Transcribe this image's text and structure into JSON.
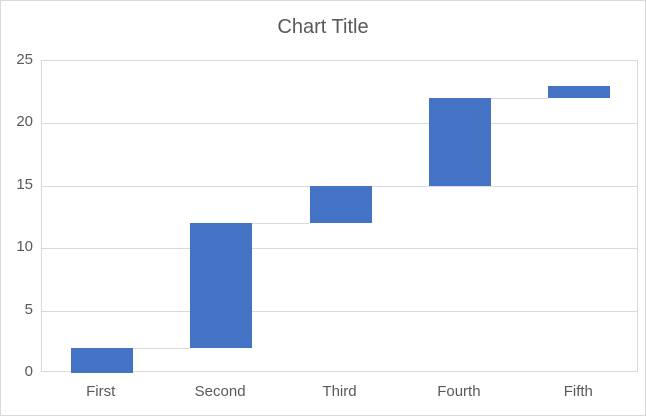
{
  "window": {
    "background_color": "#FFFFFF",
    "border_color": "#D9D9D9"
  },
  "chart_data": {
    "type": "bar",
    "subtype": "floating-waterfall",
    "title": "Chart Title",
    "categories": [
      "First",
      "Second",
      "Third",
      "Fourth",
      "Fifth"
    ],
    "series": [
      {
        "name": "values",
        "ranges": [
          [
            0,
            2
          ],
          [
            2,
            12
          ],
          [
            12,
            15
          ],
          [
            15,
            22
          ],
          [
            22,
            23
          ]
        ]
      }
    ],
    "xlabel": "",
    "ylabel": "",
    "ylim": [
      0,
      25
    ],
    "yticks": [
      0,
      5,
      10,
      15,
      20,
      25
    ],
    "grid": true,
    "legend": false,
    "connectors": true,
    "colors": {
      "bar": "#4472C4",
      "gridline": "#D9D9D9",
      "connector": "#D9D9D9",
      "text": "#595959",
      "title": "#595959",
      "plot_border": "#D9D9D9"
    }
  }
}
